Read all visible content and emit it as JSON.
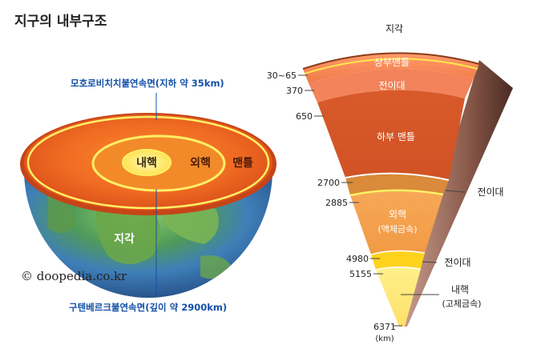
{
  "title": "지구의 내부구조",
  "left_diagram": {
    "moho_label": "모호로비치치불연속면(지하 약 35km)",
    "gutenberg_label": "구텐베르크불연속면(깊이 약 2900km)",
    "layers": {
      "inner_core": "내핵",
      "outer_core": "외핵",
      "mantle": "맨틀",
      "crust": "지각"
    },
    "copyright": "© doopedia.co.kr"
  },
  "right_diagram": {
    "top_label": "지각",
    "depth_labels": {
      "d30": "30~65",
      "d370": "370",
      "d650": "650",
      "d2700": "2700",
      "d2885": "2885",
      "d4980": "4980",
      "d5155": "5155",
      "d6371": "6371",
      "unit": "(km)"
    },
    "zones": {
      "upper_mantle": "상부맨틀",
      "transition1": "전이대",
      "lower_mantle": "하부 맨틀",
      "transition2": "전이대",
      "outer_core": "외핵",
      "outer_core_sub": "(액체금속)",
      "transition3": "전이대",
      "inner_core": "내핵",
      "inner_core_sub": "(고체금속)"
    }
  },
  "colors": {
    "crust_orange": "#e8692a",
    "mantle_red": "#d64a1c",
    "outer_core_orange": "#f3a04a",
    "inner_core_yellow": "#fde98a",
    "ring_yellow": "#fff066",
    "label_blue": "#1450a8"
  }
}
